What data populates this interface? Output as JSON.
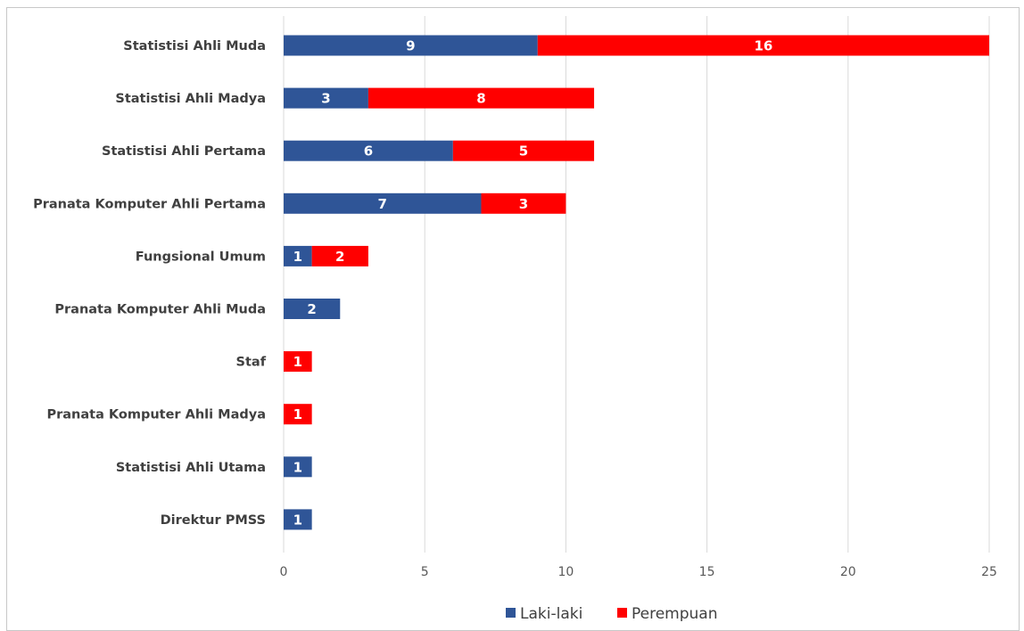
{
  "chart_data": {
    "type": "bar",
    "orientation": "horizontal",
    "stacked": true,
    "categories": [
      "Statistisi Ahli Muda",
      "Statistisi Ahli Madya",
      "Statistisi Ahli Pertama",
      "Pranata Komputer Ahli Pertama",
      "Fungsional Umum",
      "Pranata Komputer Ahli Muda",
      "Staf",
      "Pranata Komputer Ahli Madya",
      "Statistisi Ahli Utama",
      "Direktur PMSS"
    ],
    "series": [
      {
        "name": "Laki-laki",
        "color": "#2F5597",
        "values": [
          9,
          3,
          6,
          7,
          1,
          2,
          0,
          0,
          1,
          1
        ]
      },
      {
        "name": "Perempuan",
        "color": "#FF0000",
        "values": [
          16,
          8,
          5,
          3,
          2,
          0,
          1,
          1,
          0,
          0
        ]
      }
    ],
    "xlim": [
      0,
      25
    ],
    "xticks": [
      "0",
      "5",
      "10",
      "15",
      "20",
      "25"
    ],
    "grid": true,
    "legend_position": "bottom",
    "data_labels": true
  }
}
